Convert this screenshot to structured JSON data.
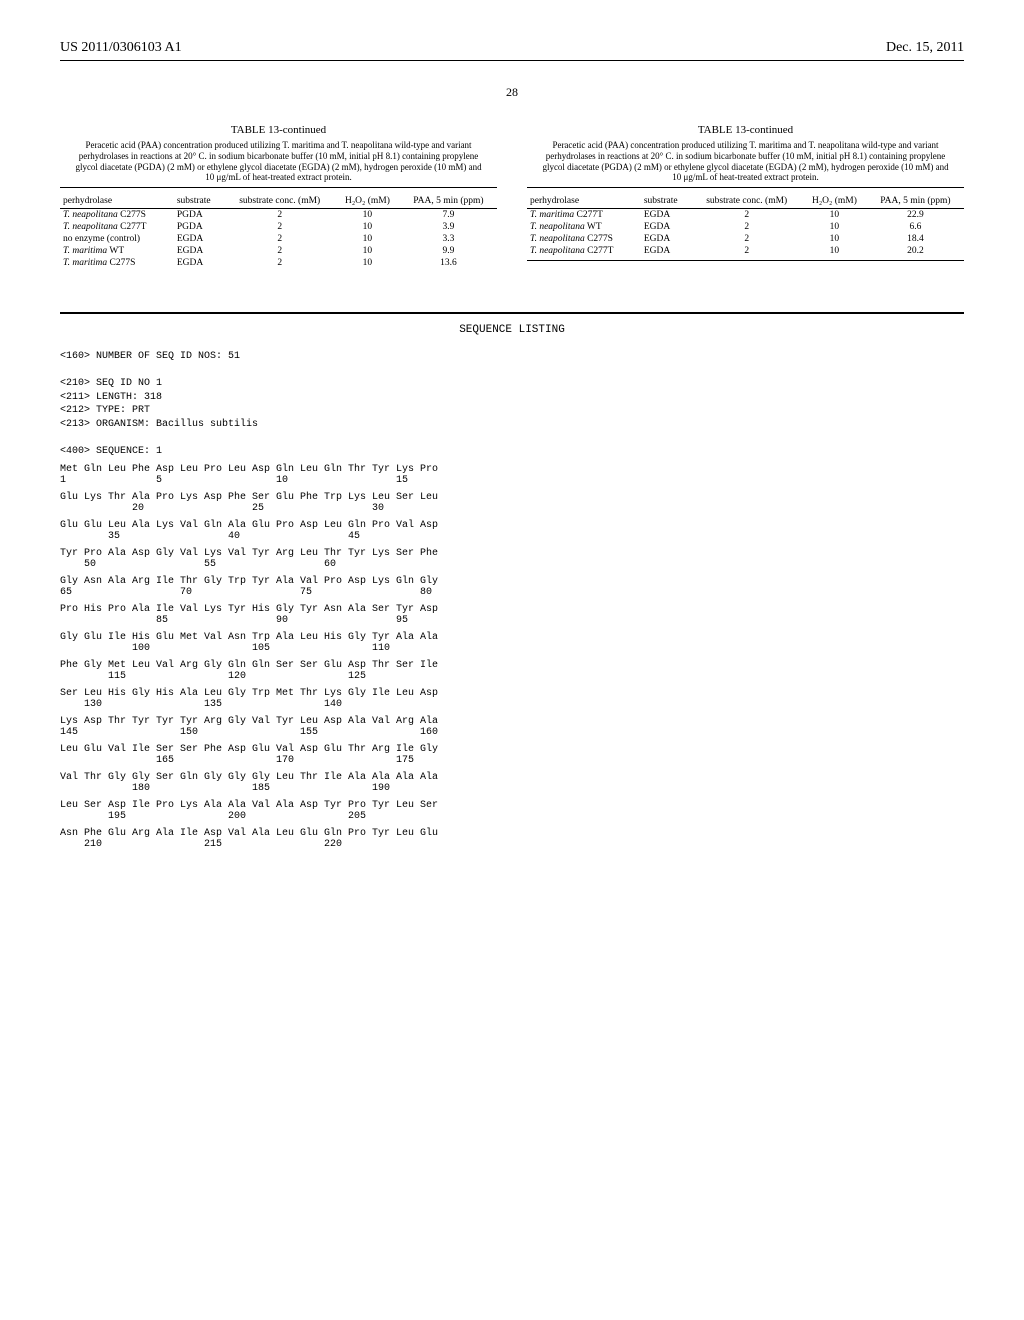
{
  "header": {
    "left": "US 2011/0306103 A1",
    "right": "Dec. 15, 2011"
  },
  "page_number": "28",
  "tables": {
    "left": {
      "title": "TABLE 13-continued",
      "caption": "Peracetic acid (PAA) concentration produced utilizing T. maritima and T. neapolitana wild-type and variant perhydrolases in reactions at 20° C. in sodium bicarbonate buffer (10 mM, initial pH 8.1) containing propylene glycol diacetate (PGDA) (2 mM) or ethylene glycol diacetate (EGDA) (2 mM), hydrogen peroxide (10 mM) and 10 μg/mL of heat-treated extract protein.",
      "columns": [
        "perhydrolase",
        "substrate",
        "substrate conc. (mM)",
        "H₂O₂ (mM)",
        "PAA, 5 min (ppm)"
      ],
      "rows": [
        [
          "T. neapolitana C277S",
          "PGDA",
          "2",
          "10",
          "7.9"
        ],
        [
          "T. neapolitana C277T",
          "PGDA",
          "2",
          "10",
          "3.9"
        ],
        [
          "no enzyme (control)",
          "EGDA",
          "2",
          "10",
          "3.3"
        ],
        [
          "T. maritima WT",
          "EGDA",
          "2",
          "10",
          "9.9"
        ],
        [
          "T. maritima C277S",
          "EGDA",
          "2",
          "10",
          "13.6"
        ]
      ]
    },
    "right": {
      "title": "TABLE 13-continued",
      "caption": "Peracetic acid (PAA) concentration produced utilizing T. maritima and T. neapolitana wild-type and variant perhydrolases in reactions at 20° C. in sodium bicarbonate buffer (10 mM, initial pH 8.1) containing propylene glycol diacetate (PGDA) (2 mM) or ethylene glycol diacetate (EGDA) (2 mM), hydrogen peroxide (10 mM) and 10 μg/mL of heat-treated extract protein.",
      "columns": [
        "perhydrolase",
        "substrate",
        "substrate conc. (mM)",
        "H₂O₂ (mM)",
        "PAA, 5 min (ppm)"
      ],
      "rows": [
        [
          "T. maritima C277T",
          "EGDA",
          "2",
          "10",
          "22.9"
        ],
        [
          "T. neapolitana WT",
          "EGDA",
          "2",
          "10",
          "6.6"
        ],
        [
          "T. neapolitana C277S",
          "EGDA",
          "2",
          "10",
          "18.4"
        ],
        [
          "T. neapolitana C277T",
          "EGDA",
          "2",
          "10",
          "20.2"
        ]
      ]
    }
  },
  "sequence": {
    "title": "SEQUENCE LISTING",
    "meta": "<160> NUMBER OF SEQ ID NOS: 51\n\n<210> SEQ ID NO 1\n<211> LENGTH: 318\n<212> TYPE: PRT\n<213> ORGANISM: Bacillus subtilis\n\n<400> SEQUENCE: 1",
    "rows": [
      {
        "aa": "Met Gln Leu Phe Asp Leu Pro Leu Asp Gln Leu Gln Thr Tyr Lys Pro",
        "num": "1               5                   10                  15"
      },
      {
        "aa": "Glu Lys Thr Ala Pro Lys Asp Phe Ser Glu Phe Trp Lys Leu Ser Leu",
        "num": "            20                  25                  30"
      },
      {
        "aa": "Glu Glu Leu Ala Lys Val Gln Ala Glu Pro Asp Leu Gln Pro Val Asp",
        "num": "        35                  40                  45"
      },
      {
        "aa": "Tyr Pro Ala Asp Gly Val Lys Val Tyr Arg Leu Thr Tyr Lys Ser Phe",
        "num": "    50                  55                  60"
      },
      {
        "aa": "Gly Asn Ala Arg Ile Thr Gly Trp Tyr Ala Val Pro Asp Lys Gln Gly",
        "num": "65                  70                  75                  80"
      },
      {
        "aa": "Pro His Pro Ala Ile Val Lys Tyr His Gly Tyr Asn Ala Ser Tyr Asp",
        "num": "                85                  90                  95"
      },
      {
        "aa": "Gly Glu Ile His Glu Met Val Asn Trp Ala Leu His Gly Tyr Ala Ala",
        "num": "            100                 105                 110"
      },
      {
        "aa": "Phe Gly Met Leu Val Arg Gly Gln Gln Ser Ser Glu Asp Thr Ser Ile",
        "num": "        115                 120                 125"
      },
      {
        "aa": "Ser Leu His Gly His Ala Leu Gly Trp Met Thr Lys Gly Ile Leu Asp",
        "num": "    130                 135                 140"
      },
      {
        "aa": "Lys Asp Thr Tyr Tyr Tyr Arg Gly Val Tyr Leu Asp Ala Val Arg Ala",
        "num": "145                 150                 155                 160"
      },
      {
        "aa": "Leu Glu Val Ile Ser Ser Phe Asp Glu Val Asp Glu Thr Arg Ile Gly",
        "num": "                165                 170                 175"
      },
      {
        "aa": "Val Thr Gly Gly Ser Gln Gly Gly Gly Leu Thr Ile Ala Ala Ala Ala",
        "num": "            180                 185                 190"
      },
      {
        "aa": "Leu Ser Asp Ile Pro Lys Ala Ala Val Ala Asp Tyr Pro Tyr Leu Ser",
        "num": "        195                 200                 205"
      },
      {
        "aa": "Asn Phe Glu Arg Ala Ile Asp Val Ala Leu Glu Gln Pro Tyr Leu Glu",
        "num": "    210                 215                 220"
      }
    ]
  }
}
